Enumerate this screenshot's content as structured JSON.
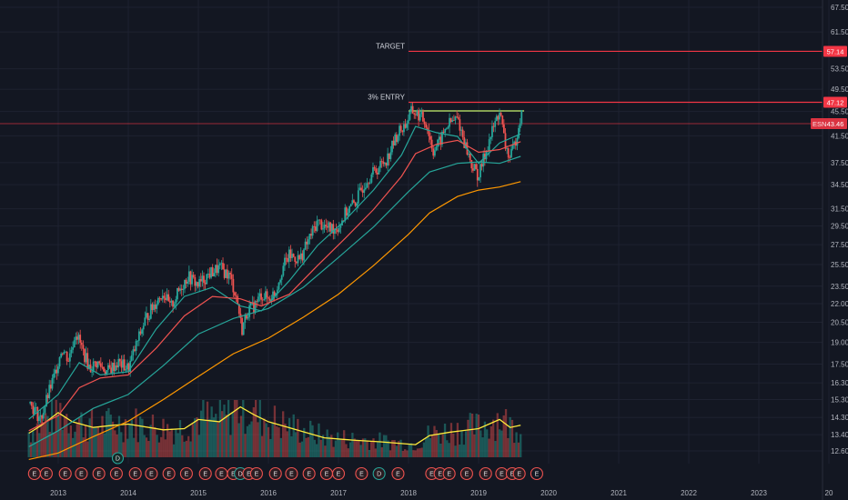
{
  "chart_data": {
    "type": "candlestick",
    "title": "",
    "x_axis": {
      "ticks": [
        "2013",
        "2014",
        "2015",
        "2016",
        "2017",
        "2018",
        "2019",
        "2020",
        "2021",
        "2022",
        "2023",
        "20"
      ]
    },
    "y_axis": {
      "scale": "log",
      "range": [
        12.2,
        70.0
      ],
      "ticks": [
        "67.50",
        "61.50",
        "57.14",
        "53.50",
        "47.12",
        "45.50",
        "43.46",
        "41.50",
        "37.50",
        "34.50",
        "31.50",
        "29.50",
        "27.50",
        "25.50",
        "23.50",
        "22.00",
        "20.50",
        "19.00",
        "17.50",
        "16.30",
        "15.30",
        "14.30",
        "13.40",
        "12.60"
      ],
      "tick_values": [
        67.5,
        61.5,
        53.5,
        49.5,
        45.5,
        41.5,
        37.5,
        34.5,
        31.5,
        29.5,
        27.5,
        25.5,
        23.5,
        22.0,
        20.5,
        19.0,
        17.5,
        16.3,
        15.3,
        14.3,
        13.4,
        12.6
      ]
    },
    "price_path": [
      [
        2012.58,
        15.2
      ],
      [
        2012.75,
        14.2
      ],
      [
        2012.95,
        16.8
      ],
      [
        2013.05,
        18.6
      ],
      [
        2013.15,
        17.8
      ],
      [
        2013.25,
        19.8
      ],
      [
        2013.35,
        18.4
      ],
      [
        2013.45,
        17.2
      ],
      [
        2013.55,
        17.6
      ],
      [
        2013.7,
        17.0
      ],
      [
        2013.85,
        17.6
      ],
      [
        2014.0,
        17.2
      ],
      [
        2014.1,
        18.6
      ],
      [
        2014.25,
        20.8
      ],
      [
        2014.4,
        22.2
      ],
      [
        2014.5,
        23.0
      ],
      [
        2014.6,
        21.6
      ],
      [
        2014.75,
        23.4
      ],
      [
        2014.85,
        24.4
      ],
      [
        2015.0,
        23.6
      ],
      [
        2015.15,
        24.6
      ],
      [
        2015.3,
        25.2
      ],
      [
        2015.45,
        24.4
      ],
      [
        2015.55,
        22.4
      ],
      [
        2015.62,
        19.9
      ],
      [
        2015.7,
        21.4
      ],
      [
        2015.8,
        21.8
      ],
      [
        2015.9,
        22.8
      ],
      [
        2016.0,
        22.4
      ],
      [
        2016.1,
        23.0
      ],
      [
        2016.2,
        25.2
      ],
      [
        2016.3,
        26.4
      ],
      [
        2016.45,
        26.0
      ],
      [
        2016.55,
        27.6
      ],
      [
        2016.7,
        30.0
      ],
      [
        2016.85,
        29.2
      ],
      [
        2017.0,
        29.4
      ],
      [
        2017.1,
        31.0
      ],
      [
        2017.25,
        32.4
      ],
      [
        2017.4,
        35.2
      ],
      [
        2017.55,
        36.6
      ],
      [
        2017.7,
        38.2
      ],
      [
        2017.85,
        42.0
      ],
      [
        2017.95,
        43.2
      ],
      [
        2018.05,
        45.6
      ],
      [
        2018.15,
        44.8
      ],
      [
        2018.25,
        43.6
      ],
      [
        2018.35,
        39.2
      ],
      [
        2018.45,
        40.6
      ],
      [
        2018.55,
        43.2
      ],
      [
        2018.7,
        44.4
      ],
      [
        2018.8,
        40.4
      ],
      [
        2018.9,
        37.2
      ],
      [
        2019.0,
        35.6
      ],
      [
        2019.1,
        39.0
      ],
      [
        2019.2,
        42.4
      ],
      [
        2019.3,
        45.6
      ],
      [
        2019.38,
        40.0
      ],
      [
        2019.45,
        38.0
      ],
      [
        2019.52,
        40.4
      ],
      [
        2019.6,
        44.8
      ]
    ],
    "series": [
      {
        "name": "",
        "color": "#26a69a",
        "kind": "moving_average",
        "values": [
          [
            2012.58,
            14.2
          ],
          [
            2013.0,
            15.6
          ],
          [
            2013.3,
            17.6
          ],
          [
            2013.6,
            16.8
          ],
          [
            2014.0,
            17.0
          ],
          [
            2014.4,
            20.0
          ],
          [
            2014.8,
            22.6
          ],
          [
            2015.2,
            23.4
          ],
          [
            2015.6,
            21.8
          ],
          [
            2015.9,
            21.4
          ],
          [
            2016.3,
            24.0
          ],
          [
            2016.7,
            27.4
          ],
          [
            2017.1,
            30.2
          ],
          [
            2017.5,
            33.8
          ],
          [
            2017.9,
            38.6
          ],
          [
            2018.1,
            43.0
          ],
          [
            2018.4,
            42.0
          ],
          [
            2018.7,
            41.4
          ],
          [
            2019.0,
            37.4
          ],
          [
            2019.3,
            40.4
          ],
          [
            2019.6,
            41.8
          ]
        ]
      },
      {
        "name": "",
        "color": "#ef5350",
        "kind": "moving_average",
        "values": [
          [
            2012.58,
            13.6
          ],
          [
            2013.0,
            14.4
          ],
          [
            2013.3,
            16.0
          ],
          [
            2013.6,
            16.6
          ],
          [
            2014.0,
            16.8
          ],
          [
            2014.4,
            18.6
          ],
          [
            2014.8,
            21.0
          ],
          [
            2015.2,
            22.6
          ],
          [
            2015.6,
            22.4
          ],
          [
            2015.9,
            21.8
          ],
          [
            2016.3,
            22.8
          ],
          [
            2016.7,
            25.4
          ],
          [
            2017.1,
            28.2
          ],
          [
            2017.5,
            31.4
          ],
          [
            2017.9,
            35.6
          ],
          [
            2018.1,
            38.8
          ],
          [
            2018.4,
            40.2
          ],
          [
            2018.7,
            40.8
          ],
          [
            2019.0,
            39.0
          ],
          [
            2019.3,
            39.4
          ],
          [
            2019.6,
            40.6
          ]
        ]
      },
      {
        "name": "",
        "color": "#26a69a",
        "kind": "moving_average",
        "values": [
          [
            2012.58,
            12.8
          ],
          [
            2013.0,
            13.6
          ],
          [
            2013.5,
            14.8
          ],
          [
            2014.0,
            15.6
          ],
          [
            2014.5,
            17.4
          ],
          [
            2015.0,
            19.6
          ],
          [
            2015.5,
            20.8
          ],
          [
            2016.0,
            21.6
          ],
          [
            2016.5,
            23.4
          ],
          [
            2017.0,
            26.2
          ],
          [
            2017.5,
            29.4
          ],
          [
            2018.0,
            33.6
          ],
          [
            2018.3,
            36.2
          ],
          [
            2018.7,
            37.4
          ],
          [
            2019.0,
            37.6
          ],
          [
            2019.3,
            37.4
          ],
          [
            2019.6,
            38.4
          ]
        ]
      },
      {
        "name": "",
        "color": "#ff9800",
        "kind": "moving_average",
        "values": [
          [
            2012.58,
            12.2
          ],
          [
            2013.0,
            12.5
          ],
          [
            2013.5,
            13.3
          ],
          [
            2014.0,
            14.1
          ],
          [
            2014.5,
            15.3
          ],
          [
            2015.0,
            16.7
          ],
          [
            2015.5,
            18.2
          ],
          [
            2016.0,
            19.3
          ],
          [
            2016.5,
            20.9
          ],
          [
            2017.0,
            22.8
          ],
          [
            2017.5,
            25.4
          ],
          [
            2018.0,
            28.6
          ],
          [
            2018.3,
            31.0
          ],
          [
            2018.7,
            33.0
          ],
          [
            2019.0,
            33.8
          ],
          [
            2019.3,
            34.2
          ],
          [
            2019.6,
            34.9
          ]
        ]
      }
    ],
    "volume": {
      "color_up": "#26a69a",
      "color_down": "#ef5350",
      "ma_color": "#ffeb3b",
      "ma_path": [
        [
          2012.58,
          0.42
        ],
        [
          2012.75,
          0.55
        ],
        [
          2013.0,
          0.78
        ],
        [
          2013.2,
          0.62
        ],
        [
          2013.5,
          0.52
        ],
        [
          2013.8,
          0.56
        ],
        [
          2014.0,
          0.58
        ],
        [
          2014.5,
          0.48
        ],
        [
          2014.8,
          0.5
        ],
        [
          2015.0,
          0.66
        ],
        [
          2015.3,
          0.62
        ],
        [
          2015.6,
          0.88
        ],
        [
          2015.8,
          0.74
        ],
        [
          2016.0,
          0.62
        ],
        [
          2016.4,
          0.48
        ],
        [
          2016.8,
          0.34
        ],
        [
          2017.2,
          0.3
        ],
        [
          2017.6,
          0.27
        ],
        [
          2017.9,
          0.24
        ],
        [
          2018.1,
          0.22
        ],
        [
          2018.3,
          0.38
        ],
        [
          2018.6,
          0.44
        ],
        [
          2019.0,
          0.5
        ],
        [
          2019.3,
          0.66
        ],
        [
          2019.45,
          0.52
        ],
        [
          2019.6,
          0.56
        ]
      ]
    },
    "horizontal_lines": [
      {
        "label": "TARGET",
        "value": 57.14,
        "color": "#f23645",
        "x_start": 2018.0
      },
      {
        "label": "3% ENTRY",
        "value": 47.12,
        "color": "#f23645",
        "x_start": 2018.0
      },
      {
        "label": "",
        "value": 45.6,
        "color": "#c5f06a",
        "x_start": 2018.0,
        "x_end": 2019.65
      }
    ],
    "current_price": {
      "symbol": "ESN",
      "value": "43.46",
      "numeric": 43.46,
      "color": "#f23645"
    },
    "price_tags": [
      {
        "value": "57.14",
        "numeric": 57.14,
        "color": "#f23645"
      },
      {
        "value": "47.12",
        "numeric": 47.12,
        "color": "#f23645"
      }
    ],
    "events": [
      {
        "x": 2012.66,
        "type": "E"
      },
      {
        "x": 2012.83,
        "type": "E"
      },
      {
        "x": 2013.1,
        "type": "E"
      },
      {
        "x": 2013.33,
        "type": "E"
      },
      {
        "x": 2013.58,
        "type": "E"
      },
      {
        "x": 2013.83,
        "type": "E"
      },
      {
        "x": 2014.1,
        "type": "E"
      },
      {
        "x": 2014.33,
        "type": "E"
      },
      {
        "x": 2014.58,
        "type": "E"
      },
      {
        "x": 2014.83,
        "type": "E"
      },
      {
        "x": 2015.1,
        "type": "E"
      },
      {
        "x": 2015.33,
        "type": "E"
      },
      {
        "x": 2015.5,
        "type": "E"
      },
      {
        "x": 2015.6,
        "type": "D"
      },
      {
        "x": 2015.72,
        "type": "E"
      },
      {
        "x": 2015.83,
        "type": "E"
      },
      {
        "x": 2016.1,
        "type": "E"
      },
      {
        "x": 2016.33,
        "type": "E"
      },
      {
        "x": 2016.58,
        "type": "E"
      },
      {
        "x": 2016.83,
        "type": "E"
      },
      {
        "x": 2017.0,
        "type": "E"
      },
      {
        "x": 2017.33,
        "type": "E"
      },
      {
        "x": 2017.58,
        "type": "D"
      },
      {
        "x": 2017.85,
        "type": "E"
      },
      {
        "x": 2018.33,
        "type": "E"
      },
      {
        "x": 2018.45,
        "type": "E"
      },
      {
        "x": 2018.58,
        "type": "E"
      },
      {
        "x": 2018.83,
        "type": "E"
      },
      {
        "x": 2019.1,
        "type": "E"
      },
      {
        "x": 2019.33,
        "type": "E"
      },
      {
        "x": 2019.48,
        "type": "E"
      },
      {
        "x": 2019.58,
        "type": "E"
      },
      {
        "x": 2019.83,
        "type": "E"
      }
    ],
    "dividend_markers": [
      {
        "x": 2013.85,
        "type": "D"
      }
    ],
    "grid": true,
    "legend": "none"
  }
}
